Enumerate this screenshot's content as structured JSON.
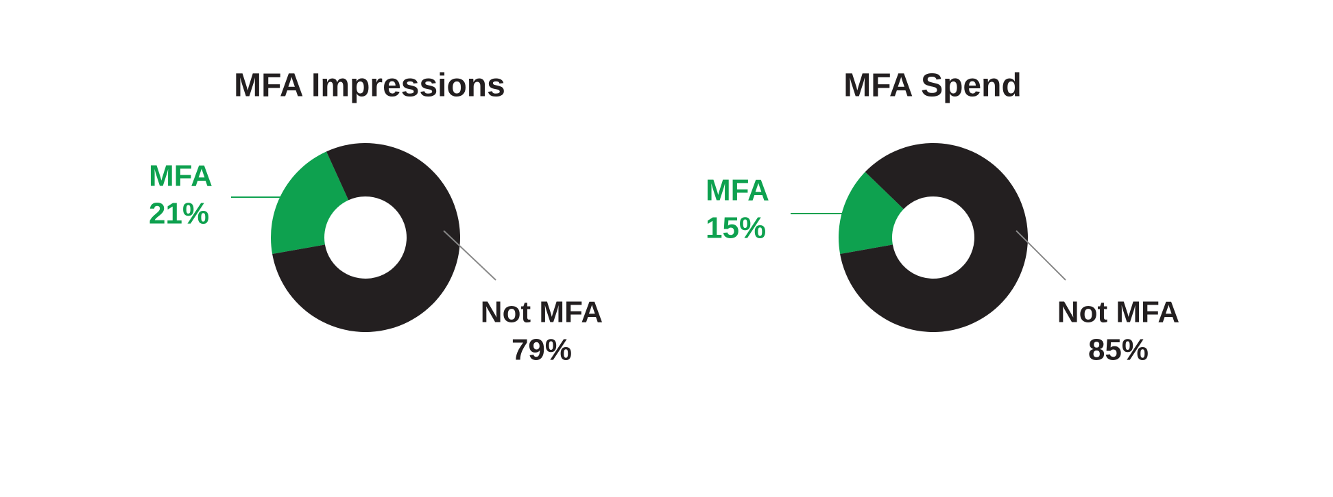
{
  "chart_data": [
    {
      "type": "pie",
      "title": "MFA Impressions",
      "categories": [
        "MFA",
        "Not MFA"
      ],
      "values": [
        21,
        79
      ],
      "value_labels": [
        "21%",
        "79%"
      ],
      "colors": [
        "#0ea14f",
        "#231f20"
      ]
    },
    {
      "type": "pie",
      "title": "MFA Spend",
      "categories": [
        "MFA",
        "Not MFA"
      ],
      "values": [
        15,
        85
      ],
      "value_labels": [
        "15%",
        "85%"
      ],
      "colors": [
        "#0ea14f",
        "#231f20"
      ]
    }
  ]
}
